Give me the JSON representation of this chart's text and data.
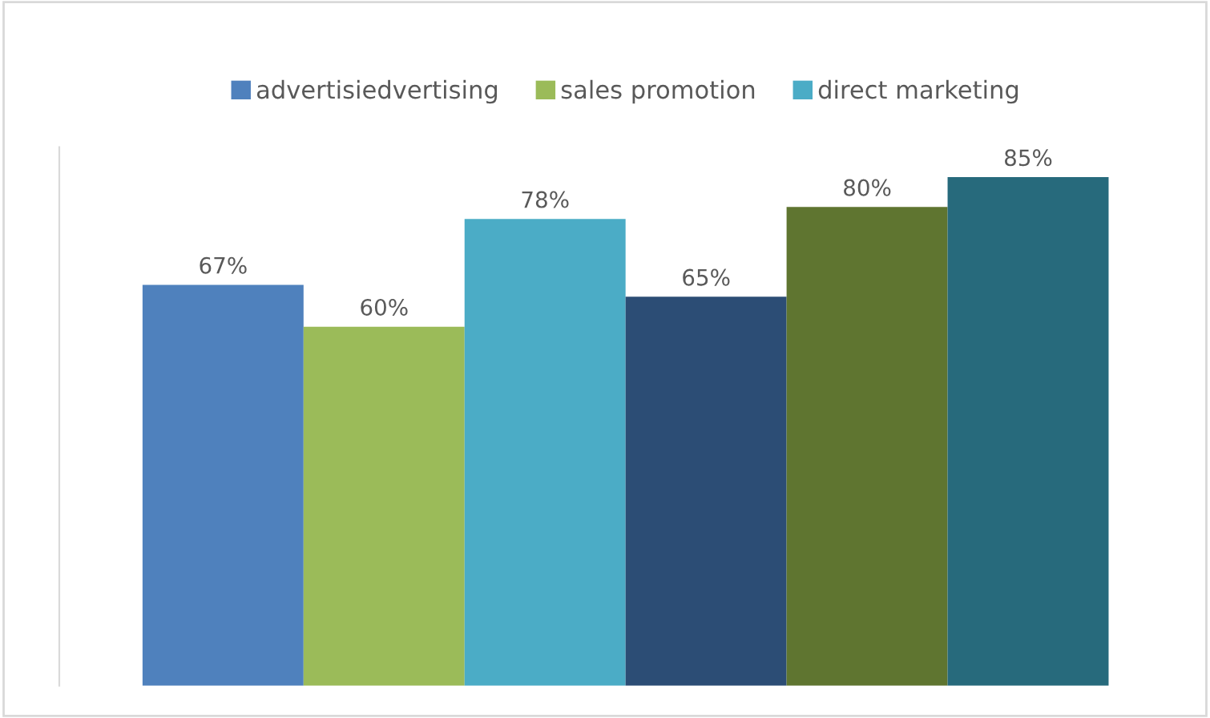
{
  "chart_data": {
    "type": "bar",
    "categories": [
      null
    ],
    "ylim": [
      0,
      90
    ],
    "grid": false,
    "legend": "top",
    "series": [
      {
        "name": "advertisiedvertising",
        "color": "#4f81bd",
        "values": [
          67
        ],
        "value_labels": [
          "67%"
        ]
      },
      {
        "name": "sales promotion",
        "color": "#9bbb59",
        "values": [
          60
        ],
        "value_labels": [
          "60%"
        ]
      },
      {
        "name": "direct marketing",
        "color": "#4bacc6",
        "values": [
          78
        ],
        "value_labels": [
          "78%"
        ]
      },
      {
        "color": "#2c4d75",
        "values": [
          65
        ],
        "value_labels": [
          "65%"
        ]
      },
      {
        "color": "#5f7530",
        "values": [
          80
        ],
        "value_labels": [
          "80%"
        ]
      },
      {
        "color": "#276a7c",
        "values": [
          85
        ],
        "value_labels": [
          "85%"
        ]
      }
    ]
  }
}
